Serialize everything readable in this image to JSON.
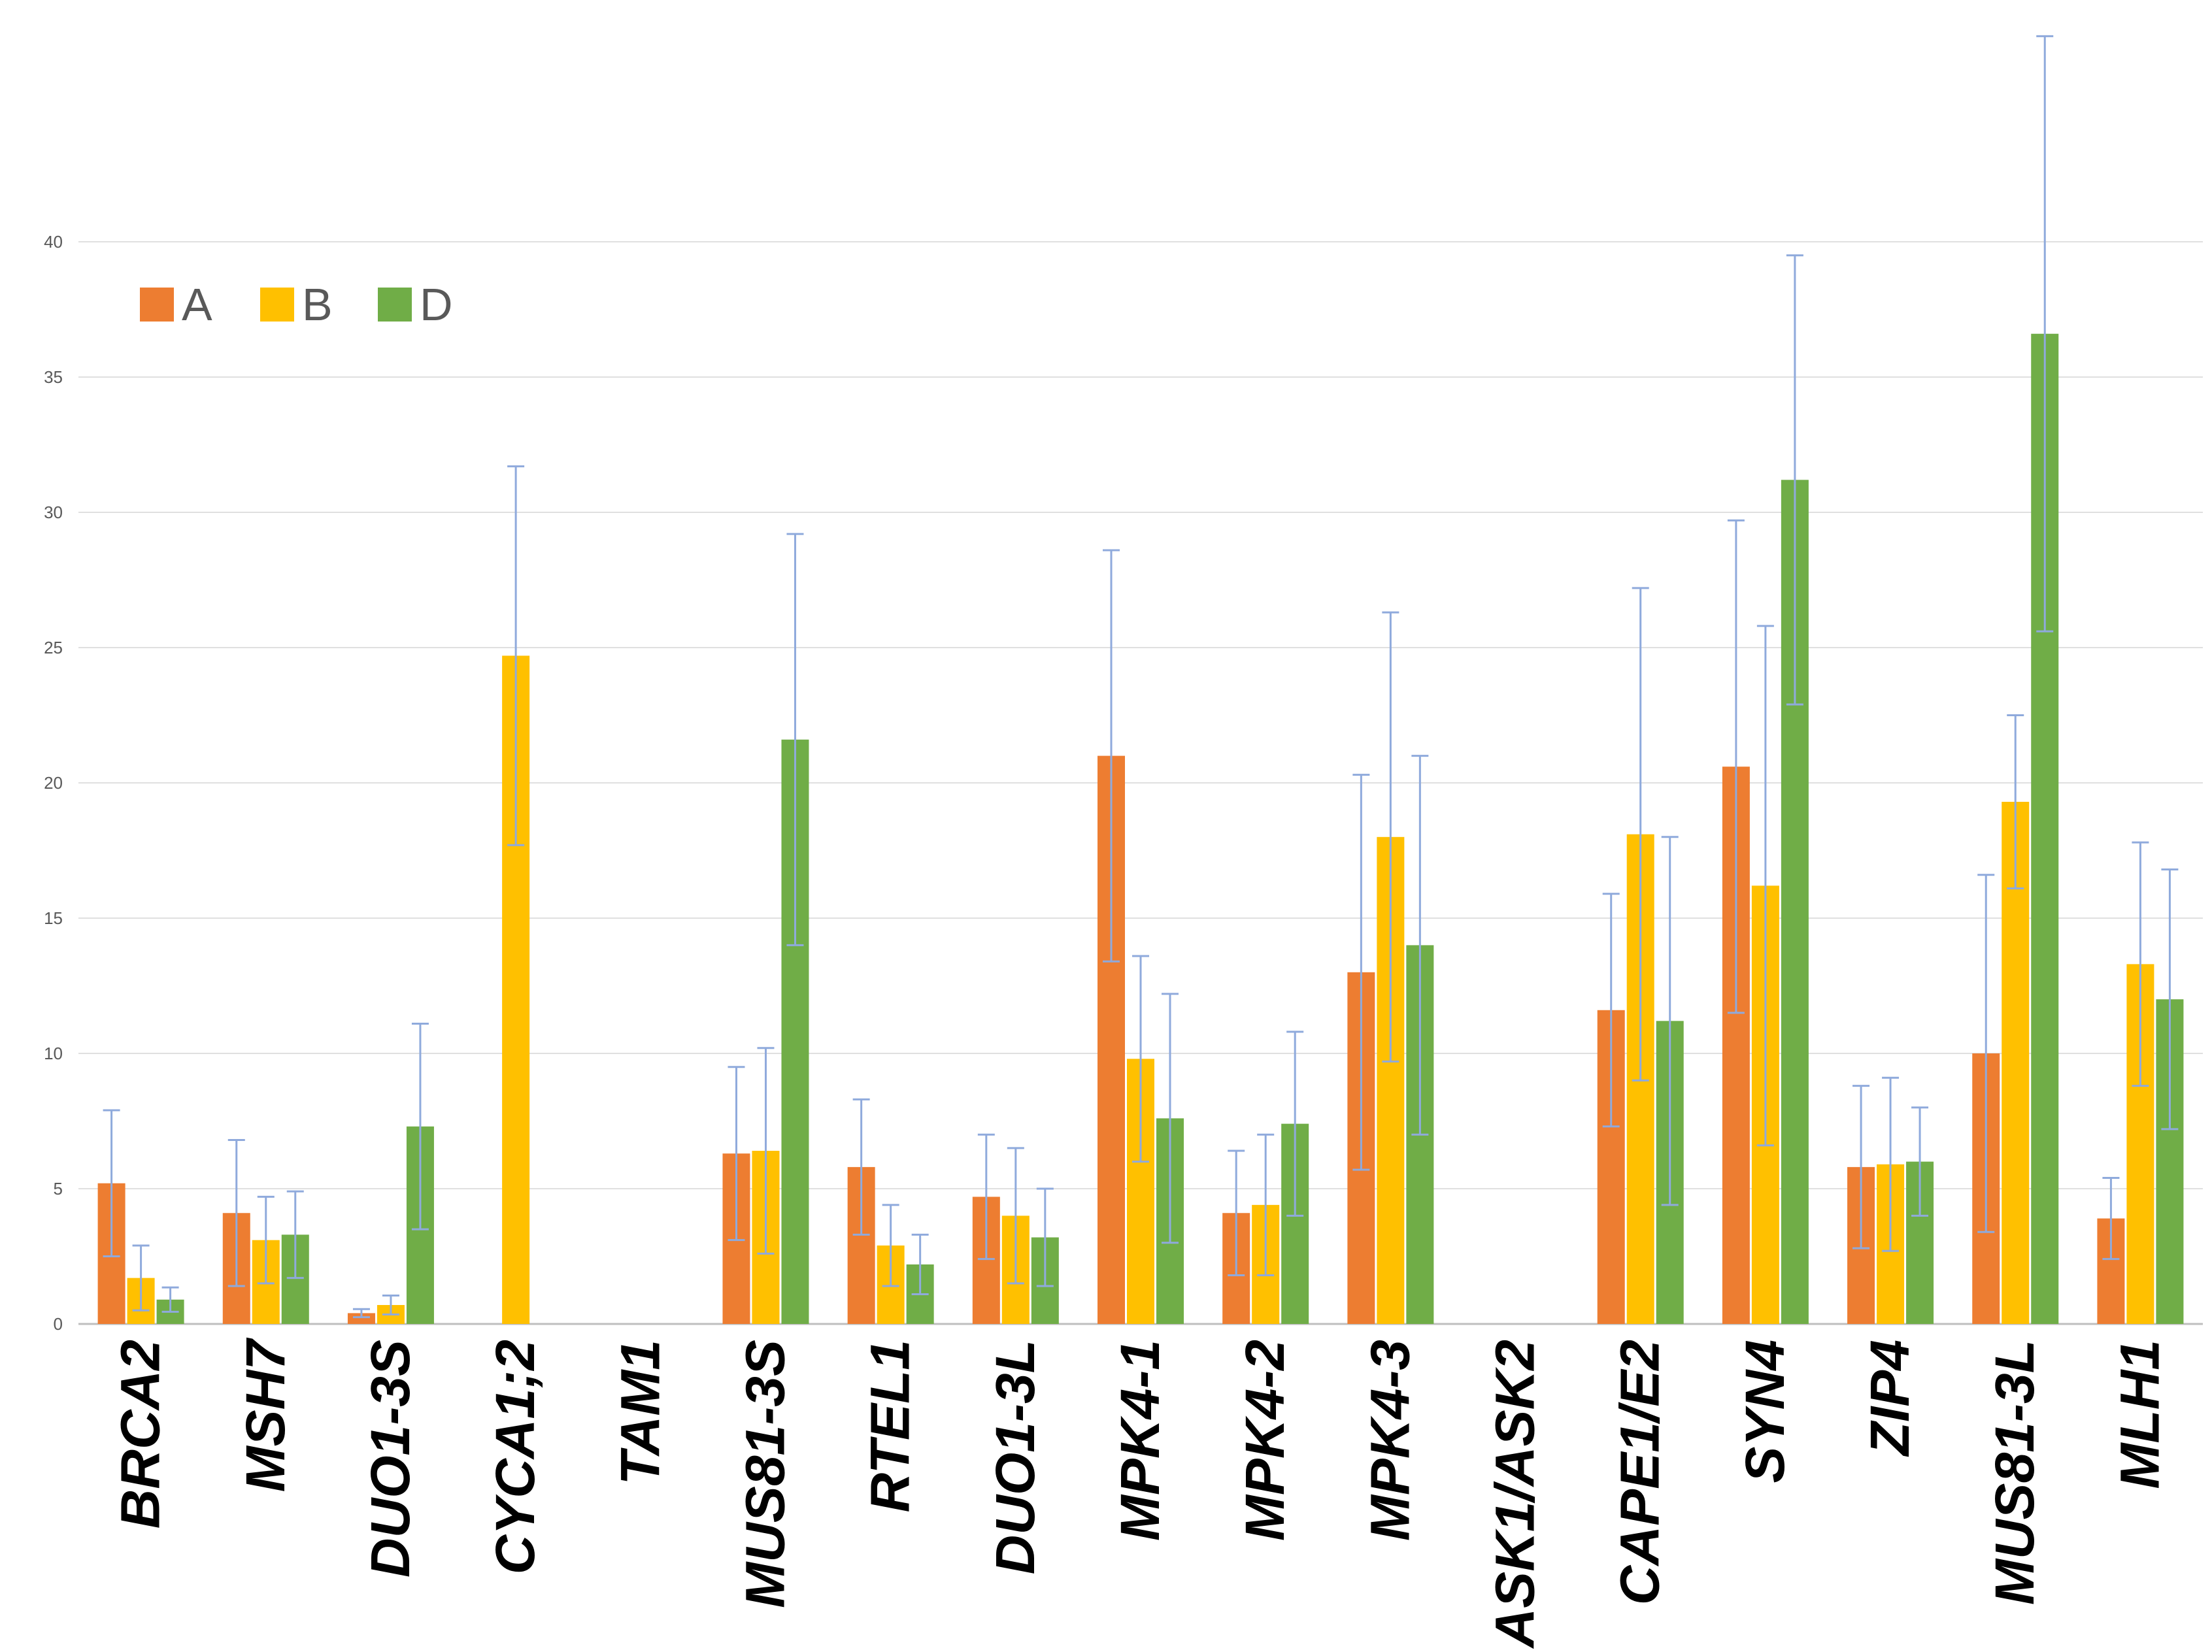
{
  "chart_data": {
    "type": "bar",
    "categories": [
      "BRCA2",
      "MSH7",
      "DUO1-3S",
      "CYCA1;2",
      "TAM1",
      "MUS81-3S",
      "RTEL1",
      "DUO1-3L",
      "MPK4-1",
      "MPK4-2",
      "MPK4-3",
      "ASK1/ASK2",
      "CAPE1/E2",
      "SYN4",
      "ZIP4",
      "MUS81-3L",
      "MLH1"
    ],
    "series": [
      {
        "name": "A",
        "color": "#ED7D31",
        "values": [
          5.2,
          4.1,
          0.4,
          null,
          null,
          6.3,
          5.8,
          4.7,
          21.0,
          4.1,
          13.0,
          null,
          11.6,
          20.6,
          5.8,
          10.0,
          3.9
        ],
        "error": [
          2.7,
          2.7,
          0.15,
          null,
          null,
          3.2,
          2.5,
          2.3,
          7.6,
          2.3,
          7.3,
          null,
          4.3,
          9.1,
          3.0,
          6.6,
          1.5
        ]
      },
      {
        "name": "B",
        "color": "#FFC000",
        "values": [
          1.7,
          3.1,
          0.7,
          24.7,
          null,
          6.4,
          2.9,
          4.0,
          9.8,
          4.4,
          18.0,
          null,
          18.1,
          16.2,
          5.9,
          19.3,
          13.3
        ],
        "error": [
          1.2,
          1.6,
          0.35,
          7.0,
          null,
          3.8,
          1.5,
          2.5,
          3.8,
          2.6,
          8.3,
          null,
          9.1,
          9.6,
          3.2,
          3.2,
          4.5
        ]
      },
      {
        "name": "D",
        "color": "#70AD47",
        "values": [
          0.9,
          3.3,
          7.3,
          null,
          null,
          21.6,
          2.2,
          3.2,
          7.6,
          7.4,
          14.0,
          null,
          11.2,
          31.2,
          6.0,
          36.6,
          12.0
        ],
        "error": [
          0.45,
          1.6,
          3.8,
          null,
          null,
          7.6,
          1.1,
          1.8,
          4.6,
          3.4,
          7.0,
          null,
          6.8,
          8.3,
          2.0,
          11.0,
          4.8
        ]
      }
    ],
    "yticks": [
      0,
      5,
      10,
      15,
      20,
      25,
      30,
      35,
      40
    ],
    "ylim": [
      0,
      48
    ],
    "grid": true,
    "legend": "top-left"
  }
}
